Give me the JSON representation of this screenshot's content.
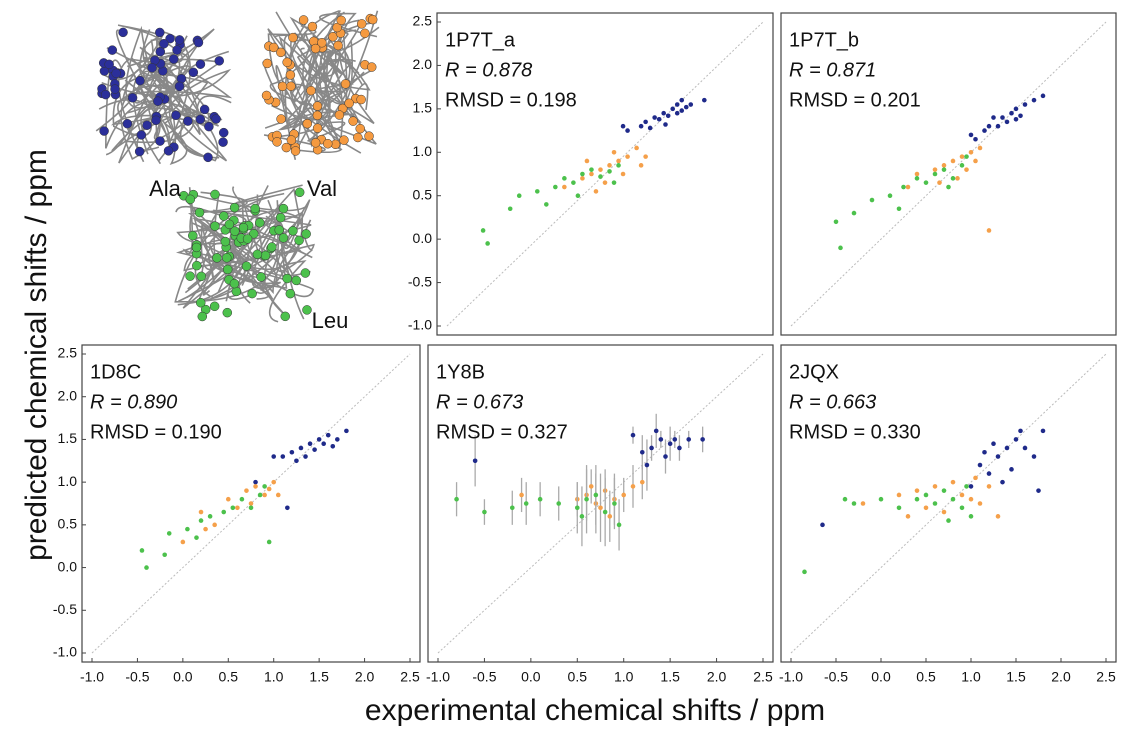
{
  "y_axis_title": "predicted chemical shifts / ppm",
  "x_axis_title": "experimental chemical shifts / ppm",
  "structures": [
    "Ala",
    "Val",
    "Leu"
  ],
  "chart_data": [
    {
      "type": "scatter",
      "annotations": [
        "1P7T_a",
        "R = 0.878",
        "RMSD = 0.198"
      ],
      "xlim": [
        -1.0,
        2.5
      ],
      "ylim": [
        -1.0,
        2.5
      ],
      "yticks": [
        {
          "value": -1.0,
          "label": "-1.0"
        },
        {
          "value": -0.5,
          "label": "-0.5"
        },
        {
          "value": 0.0,
          "label": "0.0"
        },
        {
          "value": 0.5,
          "label": "0.5"
        },
        {
          "value": 1.0,
          "label": "1.0"
        },
        {
          "value": 1.5,
          "label": "1.5"
        },
        {
          "value": 2.0,
          "label": "2.0"
        },
        {
          "value": 2.5,
          "label": "2.5"
        }
      ],
      "series": [
        {
          "color": "#1f2a8a",
          "x": [
            1.15,
            1.2,
            1.25,
            1.3,
            1.35,
            1.4,
            1.45,
            1.5,
            1.55,
            1.6,
            1.65,
            1.7,
            1.85,
            1.0,
            0.95,
            1.42,
            1.55,
            1.6
          ],
          "y": [
            1.3,
            1.35,
            1.28,
            1.4,
            1.38,
            1.45,
            1.42,
            1.5,
            1.55,
            1.6,
            1.52,
            1.55,
            1.6,
            1.25,
            1.3,
            1.32,
            1.45,
            1.48
          ]
        },
        {
          "color": "#f5a04a",
          "x": [
            0.5,
            0.6,
            0.7,
            0.8,
            0.9,
            1.0,
            0.85,
            1.1,
            1.2,
            0.75,
            0.65,
            0.3,
            0.95,
            1.15,
            0.55
          ],
          "y": [
            0.7,
            0.75,
            0.8,
            0.85,
            0.9,
            0.95,
            1.0,
            1.05,
            0.95,
            0.65,
            0.55,
            0.6,
            0.75,
            0.85,
            0.9
          ]
        },
        {
          "color": "#4cc14c",
          "x": [
            -0.6,
            -0.55,
            -0.3,
            -0.2,
            0.0,
            0.2,
            0.3,
            0.4,
            0.5,
            0.6,
            0.7,
            0.8,
            0.9,
            0.85,
            0.45,
            0.1
          ],
          "y": [
            0.1,
            -0.05,
            0.35,
            0.5,
            0.55,
            0.6,
            0.7,
            0.65,
            0.75,
            0.8,
            0.72,
            0.78,
            0.85,
            0.65,
            0.5,
            0.4
          ]
        }
      ]
    },
    {
      "type": "scatter",
      "annotations": [
        "1P7T_b",
        "R = 0.871",
        "RMSD = 0.201"
      ],
      "xlim": [
        -1.0,
        2.5
      ],
      "ylim": [
        -1.0,
        2.5
      ],
      "series": [
        {
          "color": "#1f2a8a",
          "x": [
            1.05,
            1.15,
            1.2,
            1.3,
            1.35,
            1.4,
            1.45,
            1.5,
            1.55,
            1.6,
            1.7,
            1.8,
            1.25,
            1.0,
            1.5
          ],
          "y": [
            1.15,
            1.25,
            1.3,
            1.3,
            1.4,
            1.35,
            1.45,
            1.5,
            1.42,
            1.55,
            1.6,
            1.65,
            1.4,
            1.2,
            1.38
          ]
        },
        {
          "color": "#f5a04a",
          "x": [
            0.4,
            0.6,
            0.7,
            0.8,
            0.9,
            1.0,
            1.1,
            0.85,
            0.95,
            1.2,
            0.3,
            0.65,
            1.05
          ],
          "y": [
            0.75,
            0.8,
            0.85,
            0.9,
            0.95,
            1.0,
            1.05,
            0.7,
            0.8,
            0.1,
            0.6,
            0.65,
            0.9
          ]
        },
        {
          "color": "#4cc14c",
          "x": [
            -0.5,
            -0.45,
            -0.3,
            -0.1,
            0.1,
            0.25,
            0.4,
            0.5,
            0.6,
            0.7,
            0.8,
            0.9,
            0.75,
            0.2,
            0.95
          ],
          "y": [
            0.2,
            -0.1,
            0.3,
            0.45,
            0.5,
            0.6,
            0.7,
            0.65,
            0.75,
            0.8,
            0.7,
            0.85,
            0.6,
            0.35,
            0.95
          ]
        }
      ]
    },
    {
      "type": "scatter",
      "annotations": [
        "1D8C",
        "R = 0.890",
        "RMSD = 0.190"
      ],
      "xlim": [
        -1.0,
        2.5
      ],
      "ylim": [
        -1.0,
        2.5
      ],
      "xticks": [
        {
          "value": -1.0,
          "label": "-1.0"
        },
        {
          "value": -0.5,
          "label": "-0.5"
        },
        {
          "value": 0.0,
          "label": "0.0"
        },
        {
          "value": 0.5,
          "label": "0.5"
        },
        {
          "value": 1.0,
          "label": "1.0"
        },
        {
          "value": 1.5,
          "label": "1.5"
        },
        {
          "value": 2.0,
          "label": "2.0"
        },
        {
          "value": 2.5,
          "label": "2.5"
        }
      ],
      "yticks": [
        {
          "value": -1.0,
          "label": "-1.0"
        },
        {
          "value": -0.5,
          "label": "-0.5"
        },
        {
          "value": 0.0,
          "label": "0.0"
        },
        {
          "value": 0.5,
          "label": "0.5"
        },
        {
          "value": 1.0,
          "label": "1.0"
        },
        {
          "value": 1.5,
          "label": "1.5"
        },
        {
          "value": 2.0,
          "label": "2.0"
        },
        {
          "value": 2.5,
          "label": "2.5"
        }
      ],
      "series": [
        {
          "color": "#1f2a8a",
          "x": [
            1.1,
            1.2,
            1.3,
            1.4,
            1.5,
            1.6,
            1.7,
            1.8,
            1.35,
            1.45,
            1.55,
            1.25,
            1.0,
            0.8,
            1.15,
            1.65
          ],
          "y": [
            1.3,
            1.35,
            1.4,
            1.45,
            1.5,
            1.55,
            1.5,
            1.6,
            1.3,
            1.38,
            1.45,
            1.25,
            1.3,
            1.0,
            0.7,
            1.42
          ]
        },
        {
          "color": "#f5a04a",
          "x": [
            0.2,
            0.5,
            0.7,
            0.8,
            0.9,
            1.0,
            0.6,
            0.75,
            0.95,
            0.25,
            0.0,
            0.35,
            1.05
          ],
          "y": [
            0.65,
            0.8,
            0.9,
            0.95,
            0.85,
            1.0,
            0.7,
            0.75,
            0.92,
            0.45,
            0.3,
            0.5,
            0.85
          ]
        },
        {
          "color": "#4cc14c",
          "x": [
            -0.45,
            -0.4,
            -0.2,
            -0.15,
            0.05,
            0.2,
            0.3,
            0.45,
            0.55,
            0.65,
            0.75,
            0.85,
            0.9,
            0.95,
            0.15
          ],
          "y": [
            0.2,
            0.0,
            0.15,
            0.4,
            0.45,
            0.55,
            0.6,
            0.65,
            0.7,
            0.8,
            0.7,
            0.85,
            0.95,
            0.3,
            0.35
          ]
        }
      ]
    },
    {
      "type": "scatter",
      "annotations": [
        "1Y8B",
        "R = 0.673",
        "RMSD = 0.327"
      ],
      "xlim": [
        -1.0,
        2.5
      ],
      "ylim": [
        -1.0,
        2.5
      ],
      "xticks": [
        {
          "value": -1.0,
          "label": "-1.0"
        },
        {
          "value": -0.5,
          "label": "-0.5"
        },
        {
          "value": 0.0,
          "label": "0.0"
        },
        {
          "value": 0.5,
          "label": "0.5"
        },
        {
          "value": 1.0,
          "label": "1.0"
        },
        {
          "value": 1.5,
          "label": "1.5"
        },
        {
          "value": 2.0,
          "label": "2.0"
        },
        {
          "value": 2.5,
          "label": "2.5"
        }
      ],
      "series": [
        {
          "color": "#1f2a8a",
          "x": [
            1.2,
            1.3,
            1.4,
            1.5,
            1.55,
            1.6,
            1.7,
            1.85,
            1.25,
            1.45,
            -0.6,
            1.1,
            1.35
          ],
          "y": [
            1.35,
            1.4,
            1.5,
            1.45,
            1.5,
            1.4,
            1.5,
            1.5,
            1.2,
            1.3,
            1.25,
            1.55,
            1.6
          ],
          "errors": [
            0.2,
            0.15,
            0.1,
            0.2,
            0.1,
            0.15,
            0.1,
            0.15,
            0.3,
            0.2,
            0.3,
            0.1,
            0.2
          ]
        },
        {
          "color": "#f5a04a",
          "x": [
            0.5,
            0.6,
            0.7,
            0.8,
            0.9,
            1.0,
            1.1,
            0.75,
            0.85,
            -0.1,
            1.2,
            0.65
          ],
          "y": [
            0.8,
            0.85,
            0.75,
            0.9,
            0.8,
            0.85,
            0.95,
            0.7,
            0.6,
            0.85,
            1.0,
            0.95
          ],
          "errors": [
            0.2,
            0.3,
            0.35,
            0.25,
            0.3,
            0.2,
            0.25,
            0.4,
            0.3,
            0.2,
            0.2,
            0.2
          ]
        },
        {
          "color": "#4cc14c",
          "x": [
            -0.8,
            -0.5,
            -0.2,
            -0.05,
            0.1,
            0.3,
            0.5,
            0.6,
            0.7,
            0.8,
            0.9,
            0.55,
            0.95
          ],
          "y": [
            0.8,
            0.65,
            0.7,
            0.75,
            0.8,
            0.75,
            0.7,
            0.8,
            0.85,
            0.65,
            0.75,
            0.6,
            0.5
          ],
          "errors": [
            0.2,
            0.15,
            0.2,
            0.25,
            0.2,
            0.2,
            0.3,
            0.4,
            0.35,
            0.4,
            0.3,
            0.35,
            0.3
          ]
        }
      ]
    },
    {
      "type": "scatter",
      "annotations": [
        "2JQX",
        "R = 0.663",
        "RMSD = 0.330"
      ],
      "xlim": [
        -1.0,
        2.5
      ],
      "ylim": [
        -1.0,
        2.5
      ],
      "xticks": [
        {
          "value": -1.0,
          "label": "-1.0"
        },
        {
          "value": -0.5,
          "label": "-0.5"
        },
        {
          "value": 0.0,
          "label": "0.0"
        },
        {
          "value": 0.5,
          "label": "0.5"
        },
        {
          "value": 1.0,
          "label": "1.0"
        },
        {
          "value": 1.5,
          "label": "1.5"
        },
        {
          "value": 2.0,
          "label": "2.0"
        },
        {
          "value": 2.5,
          "label": "2.5"
        }
      ],
      "series": [
        {
          "color": "#1f2a8a",
          "x": [
            1.1,
            1.15,
            1.2,
            1.3,
            1.4,
            1.45,
            1.5,
            1.55,
            1.6,
            1.7,
            1.8,
            1.75,
            1.25,
            1.0,
            -0.65,
            1.35
          ],
          "y": [
            1.2,
            1.35,
            1.1,
            1.3,
            1.4,
            1.15,
            1.5,
            1.6,
            1.4,
            1.3,
            1.6,
            0.9,
            1.45,
            0.95,
            0.5,
            1.0
          ]
        },
        {
          "color": "#f5a04a",
          "x": [
            -0.2,
            0.2,
            0.4,
            0.6,
            0.8,
            0.9,
            1.0,
            1.1,
            1.2,
            1.3,
            0.5,
            0.7,
            1.05,
            0.3
          ],
          "y": [
            0.75,
            0.85,
            0.9,
            0.95,
            1.0,
            0.85,
            0.8,
            0.75,
            0.95,
            0.6,
            0.7,
            0.65,
            1.05,
            0.6
          ]
        },
        {
          "color": "#4cc14c",
          "x": [
            -0.4,
            -0.3,
            0.0,
            0.2,
            0.4,
            0.5,
            0.6,
            0.7,
            0.8,
            0.9,
            1.0,
            0.75,
            0.95,
            -0.85
          ],
          "y": [
            0.8,
            0.75,
            0.8,
            0.7,
            0.8,
            0.85,
            0.75,
            0.9,
            0.8,
            0.7,
            0.6,
            0.55,
            0.95,
            -0.05
          ]
        }
      ]
    }
  ]
}
